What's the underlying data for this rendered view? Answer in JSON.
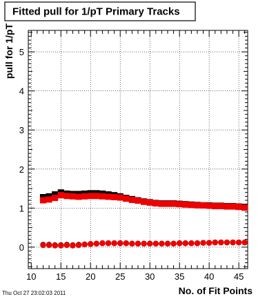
{
  "title": "Fitted pull for 1/pT Primary Tracks",
  "timestamp": "Thu Oct 27 23:02:03 2011",
  "chart_data": {
    "type": "scatter",
    "title": "Fitted pull for 1/pT Primary Tracks",
    "xlabel": "No. of Fit Points",
    "ylabel": "pull for 1/pT",
    "xlim": [
      9.5,
      46.5
    ],
    "ylim": [
      -0.55,
      5.55
    ],
    "xticks": [
      10,
      15,
      20,
      25,
      30,
      35,
      40,
      45
    ],
    "yticks": [
      0,
      1,
      2,
      3,
      4,
      5
    ],
    "grid": true,
    "x": [
      12,
      13,
      14,
      15,
      16,
      17,
      18,
      19,
      20,
      21,
      22,
      23,
      24,
      25,
      26,
      27,
      28,
      29,
      30,
      31,
      32,
      33,
      34,
      35,
      36,
      37,
      38,
      39,
      40,
      41,
      42,
      43,
      44,
      45,
      46
    ],
    "series": [
      {
        "color": "#000000",
        "marker": "square",
        "values": [
          1.28,
          1.3,
          1.35,
          1.4,
          1.37,
          1.36,
          1.36,
          1.37,
          1.38,
          1.38,
          1.37,
          1.35,
          1.33,
          1.3,
          1.26,
          1.23,
          1.2,
          1.17,
          1.15,
          1.13,
          1.12,
          1.12,
          1.12,
          1.11,
          1.1,
          1.09,
          1.08,
          1.07,
          1.07,
          1.06,
          1.06,
          1.05,
          1.05,
          1.04,
          1.03
        ]
      },
      {
        "color": "#ee0000",
        "marker": "square",
        "values": [
          1.2,
          1.22,
          1.26,
          1.33,
          1.31,
          1.3,
          1.29,
          1.3,
          1.31,
          1.31,
          1.3,
          1.29,
          1.28,
          1.27,
          1.24,
          1.21,
          1.19,
          1.16,
          1.14,
          1.12,
          1.11,
          1.11,
          1.11,
          1.1,
          1.09,
          1.08,
          1.07,
          1.07,
          1.06,
          1.05,
          1.05,
          1.04,
          1.04,
          1.03,
          1.01
        ]
      },
      {
        "color": "#000000",
        "marker": "circle",
        "values": [
          0.06,
          0.06,
          0.05,
          0.05,
          0.06,
          0.05,
          0.06,
          0.07,
          0.08,
          0.09,
          0.1,
          0.1,
          0.1,
          0.1,
          0.1,
          0.09,
          0.09,
          0.09,
          0.09,
          0.09,
          0.09,
          0.09,
          0.09,
          0.1,
          0.1,
          0.1,
          0.1,
          0.11,
          0.11,
          0.12,
          0.12,
          0.12,
          0.12,
          0.12,
          0.12
        ]
      },
      {
        "color": "#ee0000",
        "marker": "circle",
        "values": [
          0.05,
          0.05,
          0.04,
          0.04,
          0.05,
          0.04,
          0.05,
          0.07,
          0.08,
          0.09,
          0.1,
          0.1,
          0.1,
          0.1,
          0.1,
          0.09,
          0.09,
          0.09,
          0.09,
          0.09,
          0.09,
          0.09,
          0.09,
          0.1,
          0.1,
          0.1,
          0.1,
          0.11,
          0.11,
          0.12,
          0.12,
          0.12,
          0.12,
          0.12,
          0.12
        ]
      }
    ]
  }
}
